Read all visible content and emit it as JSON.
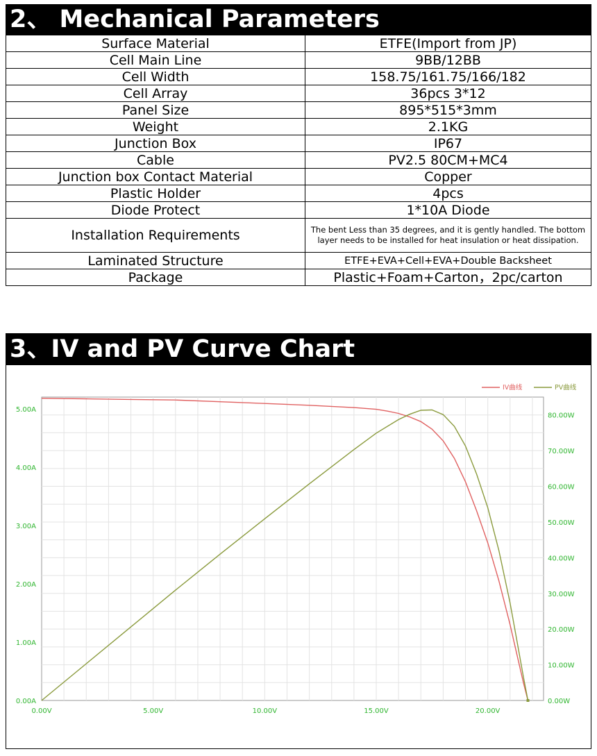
{
  "section1": {
    "title": "2、 Mechanical Parameters"
  },
  "params": [
    {
      "label": "Surface Material",
      "value": "ETFE(Import from JP)"
    },
    {
      "label": "Cell Main Line",
      "value": "9BB/12BB"
    },
    {
      "label": "Cell Width",
      "value": "158.75/161.75/166/182"
    },
    {
      "label": "Cell Array",
      "value": "36pcs 3*12"
    },
    {
      "label": "Panel Size",
      "value": "895*515*3mm"
    },
    {
      "label": "Weight",
      "value": "2.1KG"
    },
    {
      "label": "Junction Box",
      "value": "IP67"
    },
    {
      "label": "Cable",
      "value": "PV2.5 80CM+MC4"
    },
    {
      "label": "Junction box Contact Material",
      "value": "Copper"
    },
    {
      "label": "Plastic Holder",
      "value": "4pcs"
    },
    {
      "label": "Diode Protect",
      "value": "1*10A Diode"
    },
    {
      "label": "Installation Requirements",
      "value": "The bent Less than 35 degrees, and it is gently handled. The bottom layer needs to be installed for heat insulation or heat dissipation."
    },
    {
      "label": "Laminated Structure",
      "value": "ETFE+EVA+Cell+EVA+Double Backsheet"
    },
    {
      "label": "Package",
      "value": "Plastic+Foam+Carton，2pc/carton"
    }
  ],
  "section2": {
    "title": "3、IV and PV Curve Chart"
  },
  "chart_data": {
    "type": "line",
    "title": "",
    "legend_placement": "top-right",
    "grid": true,
    "x_ticks": [
      "0.00V",
      "5.00V",
      "10.00V",
      "15.00V",
      "20.00V"
    ],
    "y_left_ticks": [
      "0.00A",
      "1.00A",
      "2.00A",
      "3.00A",
      "4.00A",
      "5.00A"
    ],
    "y_right_ticks": [
      "0.00W",
      "10.00W",
      "20.00W",
      "30.00W",
      "40.00W",
      "50.00W",
      "60.00W",
      "70.00W",
      "80.00W"
    ],
    "xlim": [
      0,
      22.5
    ],
    "ylim_left": [
      0,
      5.2
    ],
    "ylim_right": [
      0,
      85
    ],
    "series": [
      {
        "name": "IV曲线",
        "axis": "left",
        "color": "#e06060",
        "x": [
          0,
          2,
          4,
          6,
          8,
          10,
          12,
          14,
          15,
          15.5,
          16,
          16.5,
          17,
          17.5,
          18,
          18.5,
          19,
          19.5,
          20,
          20.5,
          21,
          21.3,
          21.6,
          21.8
        ],
        "y": [
          5.18,
          5.17,
          5.16,
          5.15,
          5.12,
          5.09,
          5.06,
          5.02,
          4.99,
          4.96,
          4.92,
          4.86,
          4.78,
          4.65,
          4.45,
          4.15,
          3.75,
          3.25,
          2.7,
          2.05,
          1.3,
          0.8,
          0.3,
          0.0
        ]
      },
      {
        "name": "PV曲线",
        "axis": "right",
        "color": "#8a9a3c",
        "x": [
          0,
          2,
          4,
          6,
          8,
          10,
          12,
          14,
          15,
          16,
          16.5,
          17,
          17.5,
          18,
          18.5,
          19,
          19.5,
          20,
          20.5,
          21,
          21.3,
          21.6,
          21.8
        ],
        "y": [
          0,
          10.3,
          20.6,
          30.9,
          41.0,
          50.9,
          60.7,
          70.3,
          74.9,
          78.7,
          80.2,
          81.3,
          81.4,
          80.1,
          76.8,
          71.3,
          63.4,
          54.0,
          42.0,
          27.3,
          17.0,
          6.5,
          0.0
        ]
      }
    ]
  }
}
